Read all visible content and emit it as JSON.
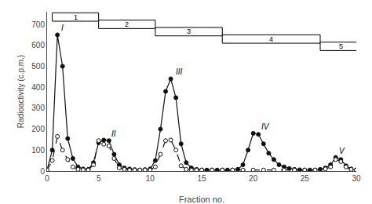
{
  "chart_data": {
    "type": "line",
    "xlabel": "Fraction no.",
    "ylabel": "Radioactivity (c.p.m.)",
    "xlim": [
      0,
      30
    ],
    "ylim": [
      0,
      760
    ],
    "xticks": [
      0,
      5,
      10,
      15,
      20,
      25,
      30
    ],
    "yticks": [
      0,
      100,
      200,
      300,
      400,
      500,
      600,
      700
    ],
    "grid": false,
    "series": [
      {
        "color": "#111111",
        "marker": "filled circle",
        "line_style": "solid",
        "x": [
          0,
          0.5,
          1.0,
          1.5,
          2.0,
          2.5,
          3.0,
          3.5,
          4.0,
          4.5,
          5.0,
          5.5,
          6.0,
          6.5,
          7.0,
          7.5,
          8.0,
          8.5,
          9.0,
          9.5,
          10.0,
          10.5,
          11.0,
          11.5,
          12.0,
          12.5,
          13.0,
          13.5,
          14.0,
          14.5,
          15.0,
          15.5,
          16.0,
          16.5,
          17.0,
          17.5,
          18.0,
          18.5,
          19.0,
          19.5,
          20.0,
          20.5,
          21.0,
          21.5,
          22.0,
          22.5,
          23.0,
          23.5,
          24.0,
          24.5,
          25.0,
          25.5,
          26.0,
          26.5,
          27.0,
          27.5,
          28.0,
          28.5,
          29.0,
          29.5,
          30.0
        ],
        "values": [
          5,
          100,
          650,
          500,
          155,
          60,
          20,
          10,
          8,
          40,
          135,
          148,
          145,
          80,
          30,
          15,
          10,
          7,
          5,
          7,
          10,
          50,
          200,
          380,
          440,
          350,
          130,
          40,
          15,
          8,
          5,
          5,
          5,
          5,
          5,
          5,
          5,
          8,
          30,
          100,
          180,
          175,
          130,
          85,
          55,
          30,
          20,
          12,
          8,
          6,
          5,
          5,
          5,
          8,
          15,
          30,
          65,
          55,
          25,
          10,
          5
        ]
      },
      {
        "color": "#111111",
        "marker": "open circle",
        "line_style": "dashed",
        "x": [
          0,
          0.5,
          1.0,
          1.5,
          2.0,
          2.5,
          3.0,
          3.5,
          4.0,
          4.5,
          5.0,
          5.5,
          6.0,
          6.5,
          7.0,
          7.5,
          8.0,
          8.5,
          9.0,
          9.5,
          10.0,
          10.5,
          11.0,
          11.5,
          12.0,
          12.5,
          13.0,
          13.5,
          14.0,
          14.5,
          15.0,
          16.0,
          17.0,
          18.0,
          19.0,
          20.0,
          21.0,
          22.0,
          23.0,
          24.0,
          25.0,
          26.0,
          27.0,
          27.5,
          28.0,
          28.5,
          29.0,
          29.5,
          30.0
        ],
        "values": [
          5,
          50,
          165,
          100,
          55,
          20,
          8,
          6,
          5,
          30,
          145,
          128,
          120,
          60,
          15,
          8,
          5,
          5,
          5,
          5,
          5,
          20,
          80,
          145,
          148,
          100,
          25,
          8,
          5,
          5,
          5,
          5,
          5,
          5,
          5,
          5,
          5,
          5,
          5,
          5,
          5,
          5,
          10,
          20,
          55,
          45,
          20,
          8,
          5
        ]
      }
    ],
    "boxes": [
      {
        "label": "1",
        "x0": 0.5,
        "x1": 5.0,
        "ytop": 755,
        "ybot": 715
      },
      {
        "label": "2",
        "x0": 5.0,
        "x1": 10.5,
        "ytop": 720,
        "ybot": 680
      },
      {
        "label": "3",
        "x0": 10.5,
        "x1": 17.0,
        "ytop": 685,
        "ybot": 645
      },
      {
        "label": "4",
        "x0": 17.0,
        "x1": 26.5,
        "ytop": 650,
        "ybot": 610
      },
      {
        "label": "5",
        "x0": 26.5,
        "x1": 30.5,
        "ytop": 615,
        "ybot": 575
      }
    ],
    "annotations": [
      {
        "text": "I",
        "x": 1.2,
        "y": 655
      },
      {
        "text": "II",
        "x": 6.1,
        "y": 150
      },
      {
        "text": "III",
        "x": 12.3,
        "y": 445
      },
      {
        "text": "IV",
        "x": 20.6,
        "y": 183
      },
      {
        "text": "V",
        "x": 28.2,
        "y": 68
      }
    ]
  }
}
